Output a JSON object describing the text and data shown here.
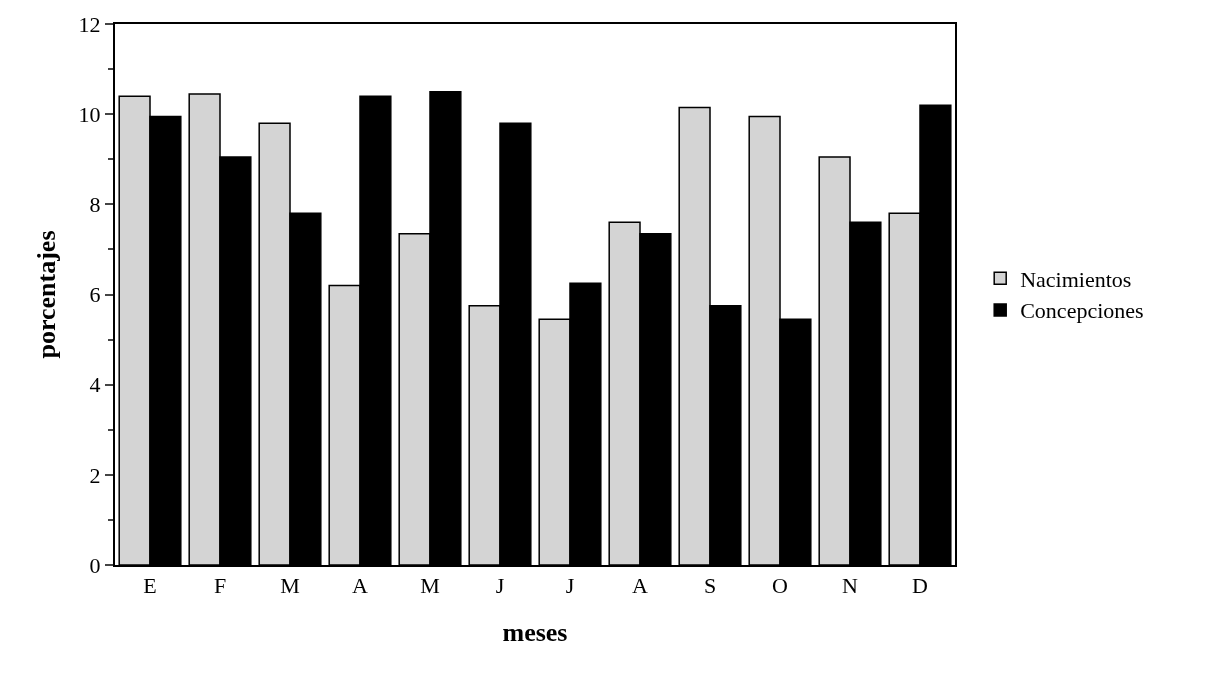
{
  "chart_data": {
    "type": "bar",
    "xlabel": "meses",
    "ylabel": "porcentajes",
    "categories": [
      "E",
      "F",
      "M",
      "A",
      "M",
      "J",
      "J",
      "A",
      "S",
      "O",
      "N",
      "D"
    ],
    "series": [
      {
        "name": "Nacimientos",
        "color": "#d4d4d4",
        "values": [
          10.4,
          10.45,
          9.8,
          6.2,
          7.35,
          5.75,
          5.45,
          7.6,
          10.15,
          9.95,
          9.05,
          7.8
        ]
      },
      {
        "name": "Concepciones",
        "color": "#000000",
        "values": [
          9.95,
          9.05,
          7.8,
          10.4,
          10.5,
          9.8,
          6.25,
          7.35,
          5.75,
          5.45,
          7.6,
          10.2
        ]
      }
    ],
    "ylim": [
      0,
      12
    ],
    "yticks": [
      0,
      2,
      4,
      6,
      8,
      10,
      12
    ],
    "legend": "right"
  }
}
